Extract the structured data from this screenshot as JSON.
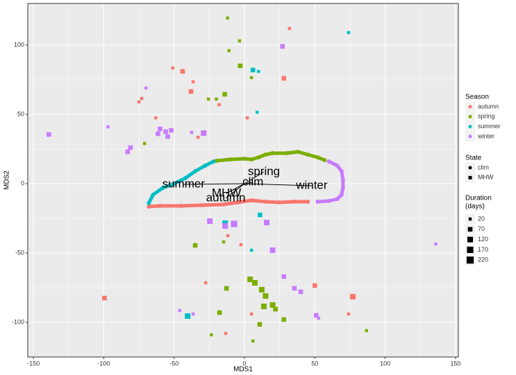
{
  "chart_data": {
    "type": "scatter",
    "xlabel": "MDS1",
    "ylabel": "MDS2",
    "xlim": [
      -154,
      152
    ],
    "ylim": [
      -125,
      130
    ],
    "xticks": [
      -150,
      -100,
      -50,
      0,
      50,
      100,
      150
    ],
    "yticks": [
      -100,
      -50,
      0,
      50,
      100
    ],
    "grid": true,
    "series": [
      {
        "name": "autumn",
        "state": "clim",
        "color": "#F8766D",
        "x": [
          45,
          35,
          25,
          15,
          5,
          -5,
          -15,
          -30,
          -45,
          -60,
          -68
        ],
        "y": [
          -13,
          -13,
          -13.5,
          -13,
          -12,
          -13.5,
          -15,
          -15.5,
          -16,
          -16,
          -16.5
        ]
      },
      {
        "name": "spring",
        "state": "clim",
        "color": "#7CAE00",
        "x": [
          -20,
          -10,
          0,
          5,
          10,
          15,
          20,
          30,
          38,
          45,
          52,
          57
        ],
        "y": [
          16.5,
          17.5,
          18,
          17.5,
          19,
          21,
          22,
          22,
          23,
          21,
          19,
          17
        ]
      },
      {
        "name": "summer",
        "state": "clim",
        "color": "#00BFC4",
        "x": [
          -68,
          -65,
          -58,
          -50,
          -42,
          -35,
          -28,
          -22
        ],
        "y": [
          -14,
          -8,
          -3,
          0,
          4,
          9,
          13,
          16
        ]
      },
      {
        "name": "winter",
        "state": "clim",
        "color": "#C77CFF",
        "x": [
          60,
          66,
          69,
          70,
          70,
          69,
          66,
          60,
          52
        ],
        "y": [
          16,
          13,
          9,
          3,
          -3,
          -8,
          -11,
          -12.5,
          -13
        ]
      },
      {
        "name": "autumn",
        "state": "MHW",
        "color": "#F8766D",
        "x": [
          32,
          -51,
          -44,
          28,
          -36.5,
          -38,
          -73,
          -18,
          -75,
          -63,
          2,
          -33,
          -11.8,
          -2.5,
          -27.6,
          50,
          77,
          -99.5,
          5,
          74,
          -13.3
        ],
        "y": [
          112,
          83.5,
          81,
          76,
          73.5,
          66.5,
          61.5,
          57,
          59,
          47.5,
          47.5,
          33.5,
          -37.5,
          -44,
          -71.5,
          -73.5,
          -81.5,
          -82.5,
          -94,
          -94,
          -108
        ],
        "size": [
          20,
          20,
          70,
          70,
          20,
          70,
          20,
          20,
          20,
          20,
          20,
          20,
          20,
          20,
          20,
          70,
          120,
          70,
          20,
          20,
          20
        ]
      },
      {
        "name": "spring",
        "state": "MHW",
        "color": "#7CAE00",
        "x": [
          -12,
          -3.5,
          -11,
          -3,
          5,
          -14,
          -25.6,
          -20,
          -71,
          -14.8,
          -35,
          4,
          7.4,
          -12.8,
          12.3,
          15,
          13.8,
          20,
          22,
          -17.7,
          28,
          10.8,
          86.7,
          -23.6,
          6
        ],
        "y": [
          119.5,
          103,
          96,
          85,
          76.5,
          64.5,
          61,
          61,
          29,
          -42,
          -44.5,
          -69,
          -71.5,
          -75.5,
          -76.5,
          -81,
          -88.5,
          -87.5,
          -90.5,
          -93,
          -98,
          -101.5,
          -106,
          -109,
          -113.5
        ],
        "size": [
          20,
          20,
          20,
          70,
          20,
          70,
          20,
          20,
          20,
          20,
          70,
          120,
          120,
          70,
          120,
          120,
          120,
          120,
          70,
          70,
          70,
          70,
          20,
          20,
          20
        ]
      },
      {
        "name": "summer",
        "state": "MHW",
        "color": "#00BFC4",
        "x": [
          74,
          6,
          10,
          9,
          11,
          -13.8,
          5,
          -40.4
        ],
        "y": [
          109,
          82,
          81,
          51.5,
          -22.5,
          -28.5,
          -48,
          -95.5
        ],
        "size": [
          20,
          70,
          20,
          20,
          70,
          120,
          20,
          120
        ]
      },
      {
        "name": "winter",
        "state": "MHW",
        "color": "#C77CFF",
        "x": [
          27,
          -70,
          -97,
          -60,
          -56,
          -52,
          -61.5,
          -54.5,
          -37.5,
          -29,
          -139,
          -81,
          -83,
          -24.6,
          -13.8,
          -7.4,
          15.8,
          20,
          136,
          28,
          35.5,
          40,
          -46,
          -36.5,
          51,
          52.7
        ],
        "y": [
          99,
          69,
          41,
          39.5,
          37.5,
          38.5,
          36,
          34,
          37,
          36.5,
          35.5,
          26,
          23,
          -27,
          -30.5,
          -29,
          -28,
          -48,
          -43.5,
          -67,
          -75.5,
          -78,
          -91.5,
          -94,
          -95,
          -97
        ],
        "size": [
          70,
          20,
          20,
          70,
          70,
          70,
          70,
          70,
          20,
          120,
          70,
          70,
          70,
          120,
          120,
          170,
          120,
          120,
          20,
          70,
          70,
          70,
          20,
          20,
          70,
          20
        ]
      }
    ],
    "annotations": [
      {
        "text": "spring",
        "x": 13.8,
        "y": 8.5
      },
      {
        "text": "clim",
        "x": 6,
        "y": 1
      },
      {
        "text": "summer",
        "x": -43.3,
        "y": -0.5
      },
      {
        "text": "winter",
        "x": 47.8,
        "y": -1.5
      },
      {
        "text": "MHW",
        "x": -12.8,
        "y": -7
      },
      {
        "text": "autumn",
        "x": -13.3,
        "y": -10.5
      }
    ],
    "legend": {
      "season": {
        "title": "Season",
        "items": [
          "autumn",
          "spring",
          "summer",
          "winter"
        ],
        "colors": [
          "#F8766D",
          "#7CAE00",
          "#00BFC4",
          "#C77CFF"
        ]
      },
      "state": {
        "title": "State",
        "items": [
          "clim",
          "MHW"
        ]
      },
      "duration": {
        "title": [
          "Duration",
          "(days)"
        ],
        "values": [
          20,
          70,
          120,
          170,
          220
        ]
      }
    }
  }
}
